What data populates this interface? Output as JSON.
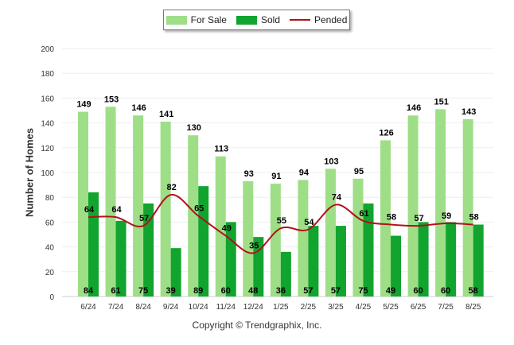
{
  "chart_data": {
    "type": "bar",
    "categories": [
      "6/24",
      "7/24",
      "8/24",
      "9/24",
      "10/24",
      "11/24",
      "12/24",
      "1/25",
      "2/25",
      "3/25",
      "4/25",
      "5/25",
      "6/25",
      "7/25",
      "8/25"
    ],
    "series": [
      {
        "name": "For Sale",
        "type": "bar",
        "color": "#9ede87",
        "values": [
          149,
          153,
          146,
          141,
          130,
          113,
          93,
          91,
          94,
          103,
          95,
          126,
          146,
          151,
          143
        ]
      },
      {
        "name": "Sold",
        "type": "bar",
        "color": "#11a42e",
        "values": [
          84,
          61,
          75,
          39,
          89,
          60,
          48,
          36,
          57,
          57,
          75,
          49,
          60,
          60,
          58
        ]
      },
      {
        "name": "Pended",
        "type": "line",
        "color": "#b3101a",
        "values": [
          64,
          64,
          57,
          82,
          65,
          49,
          35,
          55,
          54,
          74,
          61,
          58,
          57,
          59,
          58
        ]
      }
    ],
    "ylabel": "Number of Homes",
    "xlabel": "",
    "ylim": [
      0,
      200
    ],
    "yticks": [
      0,
      20,
      40,
      60,
      80,
      100,
      120,
      140,
      160,
      180,
      200
    ],
    "grid": true,
    "legend_position": "top-center"
  },
  "footer": "Copyright © Trendgraphix, Inc."
}
